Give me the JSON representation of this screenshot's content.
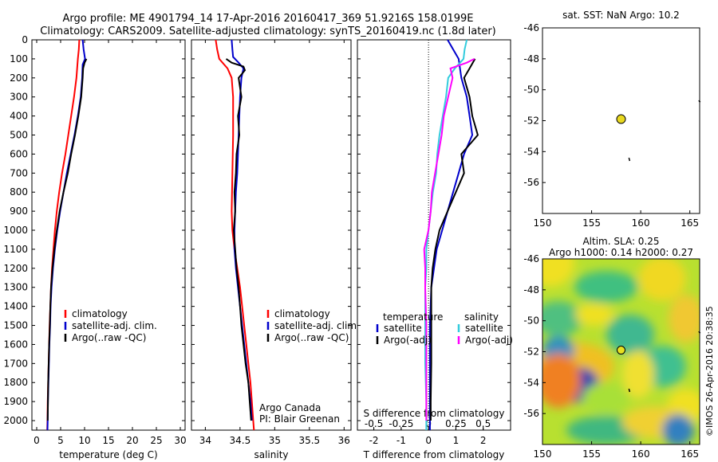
{
  "header": {
    "line1": "Argo profile: ME 4901794_14 17-Apr-2016 20160417_369 51.9216S 158.0199E",
    "line2": "Climatology: CARS2009. Satellite-adjusted climatology: synTS_20160419.nc (1.8d later)"
  },
  "credit": {
    "watermark": "©IMOS 26-Apr-2016 20:38:35",
    "source_line1": "Argo Canada",
    "source_line2": "PI: Blair Greenan"
  },
  "colors": {
    "climatology": "#ff0000",
    "satellite": "#0000cc",
    "argo": "#000000",
    "argo_salinity": "#ff00ff",
    "sat_salinity": "#33ccdd"
  },
  "chart_data": [
    {
      "type": "line",
      "id": "temperature",
      "xlabel": "temperature (deg C)",
      "ylabel": "",
      "xlim": [
        -1,
        31
      ],
      "ylim": [
        2050,
        0
      ],
      "xticks": [
        0,
        5,
        10,
        15,
        20,
        25,
        30
      ],
      "yticks": [
        0,
        100,
        200,
        300,
        400,
        500,
        600,
        700,
        800,
        900,
        1000,
        1100,
        1200,
        1300,
        1400,
        1500,
        1600,
        1700,
        1800,
        1900,
        2000
      ],
      "legend": {
        "position": "lower-middle",
        "entries": [
          "climatology",
          "satellite-adj. clim.",
          "Argo(..raw -QC)"
        ]
      },
      "series": [
        {
          "name": "climatology",
          "color": "#ff0000",
          "points": [
            [
              8.9,
              0
            ],
            [
              8.8,
              50
            ],
            [
              8.6,
              100
            ],
            [
              8.3,
              200
            ],
            [
              7.8,
              300
            ],
            [
              7.2,
              400
            ],
            [
              6.6,
              500
            ],
            [
              6.0,
              600
            ],
            [
              5.3,
              700
            ],
            [
              4.7,
              800
            ],
            [
              4.2,
              900
            ],
            [
              3.8,
              1000
            ],
            [
              3.5,
              1100
            ],
            [
              3.2,
              1200
            ],
            [
              3.0,
              1300
            ],
            [
              2.85,
              1400
            ],
            [
              2.7,
              1500
            ],
            [
              2.6,
              1600
            ],
            [
              2.5,
              1700
            ],
            [
              2.4,
              1800
            ],
            [
              2.3,
              1900
            ],
            [
              2.25,
              2000
            ],
            [
              2.2,
              2050
            ]
          ]
        },
        {
          "name": "satellite-adj. clim.",
          "color": "#0000cc",
          "points": [
            [
              9.6,
              0
            ],
            [
              9.8,
              50
            ],
            [
              10.1,
              100
            ],
            [
              9.6,
              130
            ],
            [
              9.5,
              200
            ],
            [
              9.2,
              300
            ],
            [
              8.6,
              400
            ],
            [
              7.9,
              500
            ],
            [
              7.1,
              600
            ],
            [
              6.3,
              700
            ],
            [
              5.6,
              800
            ],
            [
              4.9,
              900
            ],
            [
              4.3,
              1000
            ],
            [
              3.8,
              1100
            ],
            [
              3.4,
              1200
            ],
            [
              3.1,
              1300
            ],
            [
              2.9,
              1400
            ],
            [
              2.8,
              1500
            ],
            [
              2.65,
              1600
            ],
            [
              2.55,
              1700
            ],
            [
              2.45,
              1800
            ],
            [
              2.35,
              1900
            ],
            [
              2.3,
              2000
            ],
            [
              2.25,
              2050
            ]
          ]
        },
        {
          "name": "Argo(..raw -QC)",
          "color": "#000000",
          "points": [
            [
              10.4,
              100
            ],
            [
              10.0,
              120
            ],
            [
              9.7,
              150
            ],
            [
              9.6,
              200
            ],
            [
              9.3,
              300
            ],
            [
              8.7,
              400
            ],
            [
              8.0,
              500
            ],
            [
              7.2,
              600
            ],
            [
              6.5,
              700
            ],
            [
              5.6,
              800
            ],
            [
              4.8,
              900
            ],
            [
              4.2,
              1000
            ],
            [
              3.7,
              1100
            ],
            [
              3.3,
              1200
            ],
            [
              3.0,
              1300
            ],
            [
              2.85,
              1400
            ],
            [
              2.75,
              1500
            ],
            [
              2.6,
              1600
            ],
            [
              2.5,
              1700
            ],
            [
              2.4,
              1800
            ],
            [
              2.35,
              1900
            ],
            [
              2.3,
              2000
            ]
          ]
        }
      ]
    },
    {
      "type": "line",
      "id": "salinity",
      "xlabel": "salinity",
      "ylabel": "",
      "xlim": [
        33.8,
        36.1
      ],
      "ylim": [
        2050,
        0
      ],
      "xticks": [
        34,
        34.5,
        35,
        35.5,
        36
      ],
      "legend": {
        "position": "lower-right",
        "entries": [
          "climatology",
          "satellite-adj. clim.",
          "Argo(..raw -QC)"
        ]
      },
      "series": [
        {
          "name": "climatology",
          "color": "#ff0000",
          "points": [
            [
              34.15,
              0
            ],
            [
              34.17,
              50
            ],
            [
              34.2,
              100
            ],
            [
              34.32,
              150
            ],
            [
              34.38,
              200
            ],
            [
              34.4,
              300
            ],
            [
              34.4,
              500
            ],
            [
              34.39,
              700
            ],
            [
              34.38,
              900
            ],
            [
              34.39,
              1000
            ],
            [
              34.42,
              1100
            ],
            [
              34.46,
              1200
            ],
            [
              34.5,
              1300
            ],
            [
              34.53,
              1400
            ],
            [
              34.56,
              1500
            ],
            [
              34.59,
              1600
            ],
            [
              34.62,
              1700
            ],
            [
              34.65,
              1800
            ],
            [
              34.67,
              1900
            ],
            [
              34.69,
              2000
            ],
            [
              34.7,
              2050
            ]
          ]
        },
        {
          "name": "satellite-adj. clim.",
          "color": "#0000cc",
          "points": [
            [
              34.38,
              0
            ],
            [
              34.39,
              50
            ],
            [
              34.4,
              90
            ],
            [
              34.48,
              120
            ],
            [
              34.55,
              150
            ],
            [
              34.52,
              200
            ],
            [
              34.5,
              300
            ],
            [
              34.49,
              400
            ],
            [
              34.48,
              500
            ],
            [
              34.47,
              600
            ],
            [
              34.46,
              700
            ],
            [
              34.44,
              800
            ],
            [
              34.43,
              900
            ],
            [
              34.42,
              1000
            ],
            [
              34.42,
              1100
            ],
            [
              34.44,
              1200
            ],
            [
              34.47,
              1300
            ],
            [
              34.5,
              1400
            ],
            [
              34.53,
              1500
            ],
            [
              34.56,
              1600
            ],
            [
              34.59,
              1700
            ],
            [
              34.62,
              1800
            ],
            [
              34.65,
              1900
            ],
            [
              34.67,
              2000
            ]
          ]
        },
        {
          "name": "Argo(..raw -QC)",
          "color": "#000000",
          "points": [
            [
              34.3,
              100
            ],
            [
              34.38,
              120
            ],
            [
              34.55,
              140
            ],
            [
              34.57,
              160
            ],
            [
              34.48,
              200
            ],
            [
              34.52,
              300
            ],
            [
              34.47,
              400
            ],
            [
              34.49,
              500
            ],
            [
              34.45,
              600
            ],
            [
              34.44,
              700
            ],
            [
              34.42,
              800
            ],
            [
              34.43,
              900
            ],
            [
              34.41,
              1000
            ],
            [
              34.43,
              1100
            ],
            [
              34.45,
              1200
            ],
            [
              34.48,
              1300
            ],
            [
              34.5,
              1400
            ],
            [
              34.52,
              1500
            ],
            [
              34.55,
              1600
            ],
            [
              34.58,
              1700
            ],
            [
              34.62,
              1800
            ],
            [
              34.64,
              1900
            ],
            [
              34.66,
              2000
            ]
          ]
        }
      ]
    },
    {
      "type": "line",
      "id": "differences",
      "xlabel": "T difference from climatology",
      "xlabel2": "S difference from climatology",
      "xlim": [
        -2.6,
        3.0
      ],
      "ylim": [
        2050,
        0
      ],
      "xticks": [
        -2,
        -1,
        0,
        1,
        2
      ],
      "s_ticks": [
        "-0.5",
        "-0.25",
        "0",
        "0.25",
        "0.5"
      ],
      "legend": {
        "position": "lower-middle",
        "headers": [
          "temperature",
          "salinity"
        ],
        "entries": [
          "satellite",
          "Argo(-adj)",
          "satellite",
          "Argo(-adj)"
        ]
      },
      "series": [
        {
          "name": "temperature satellite",
          "color": "#0000cc",
          "points": [
            [
              0.7,
              0
            ],
            [
              0.9,
              50
            ],
            [
              1.1,
              100
            ],
            [
              1.2,
              200
            ],
            [
              1.4,
              300
            ],
            [
              1.5,
              400
            ],
            [
              1.6,
              500
            ],
            [
              1.3,
              600
            ],
            [
              1.1,
              700
            ],
            [
              0.9,
              800
            ],
            [
              0.7,
              900
            ],
            [
              0.5,
              1000
            ],
            [
              0.3,
              1100
            ],
            [
              0.2,
              1200
            ],
            [
              0.1,
              1300
            ],
            [
              0.05,
              1500
            ],
            [
              0.05,
              1700
            ],
            [
              0.05,
              1900
            ],
            [
              0.05,
              2050
            ]
          ]
        },
        {
          "name": "temperature Argo(-adj)",
          "color": "#000000",
          "points": [
            [
              1.7,
              100
            ],
            [
              1.5,
              150
            ],
            [
              1.3,
              200
            ],
            [
              1.5,
              300
            ],
            [
              1.6,
              400
            ],
            [
              1.8,
              500
            ],
            [
              1.2,
              600
            ],
            [
              1.3,
              700
            ],
            [
              1.0,
              800
            ],
            [
              0.7,
              900
            ],
            [
              0.4,
              1000
            ],
            [
              0.25,
              1100
            ],
            [
              0.15,
              1200
            ],
            [
              0.1,
              1300
            ],
            [
              0.1,
              1500
            ],
            [
              0.1,
              1700
            ],
            [
              0.08,
              1900
            ],
            [
              0.08,
              2000
            ]
          ]
        },
        {
          "name": "salinity satellite",
          "color": "#33ccdd",
          "points": [
            [
              0.35,
              0
            ],
            [
              0.33,
              50
            ],
            [
              0.32,
              100
            ],
            [
              0.24,
              150
            ],
            [
              0.18,
              200
            ],
            [
              0.16,
              300
            ],
            [
              0.13,
              400
            ],
            [
              0.1,
              500
            ],
            [
              0.08,
              600
            ],
            [
              0.07,
              700
            ],
            [
              0.04,
              800
            ],
            [
              0.02,
              900
            ],
            [
              0.0,
              1000
            ],
            [
              -0.02,
              1100
            ],
            [
              -0.02,
              1200
            ],
            [
              -0.03,
              1300
            ],
            [
              -0.03,
              1500
            ],
            [
              -0.03,
              1700
            ],
            [
              -0.02,
              1900
            ],
            [
              -0.02,
              2050
            ]
          ]
        },
        {
          "name": "salinity Argo(-adj)",
          "color": "#ff00ff",
          "points": [
            [
              0.42,
              100
            ],
            [
              0.35,
              120
            ],
            [
              0.2,
              150
            ],
            [
              0.22,
              200
            ],
            [
              0.18,
              300
            ],
            [
              0.14,
              400
            ],
            [
              0.12,
              500
            ],
            [
              0.09,
              600
            ],
            [
              0.06,
              700
            ],
            [
              0.03,
              800
            ],
            [
              0.02,
              900
            ],
            [
              0.0,
              1000
            ],
            [
              -0.04,
              1100
            ],
            [
              -0.03,
              1200
            ],
            [
              -0.03,
              1300
            ],
            [
              -0.02,
              1500
            ],
            [
              -0.02,
              1700
            ],
            [
              -0.02,
              1900
            ],
            [
              -0.02,
              2000
            ]
          ]
        }
      ]
    },
    {
      "type": "scatter",
      "id": "sst_map",
      "title": "sat. SST: NaN Argo: 10.2",
      "xlim": [
        150,
        166
      ],
      "ylim": [
        -58,
        -46
      ],
      "xticks": [
        150,
        155,
        160,
        165
      ],
      "yticks": [
        -46,
        -48,
        -50,
        -52,
        -54,
        -56
      ],
      "points": [
        {
          "x": 158.0,
          "y": -51.9,
          "color": "#e8d820"
        }
      ]
    },
    {
      "type": "heatmap",
      "id": "sla_map",
      "title": "Altim. SLA: 0.25",
      "subtitle": "Argo h1000: 0.14 h2000: 0.27",
      "xlim": [
        150,
        166
      ],
      "ylim": [
        -58,
        -46
      ],
      "xticks": [
        150,
        155,
        160,
        165
      ],
      "yticks": [
        -46,
        -48,
        -50,
        -52,
        -54,
        -56
      ],
      "points": [
        {
          "x": 158.0,
          "y": -51.9,
          "color": "#e8e020"
        }
      ]
    }
  ]
}
